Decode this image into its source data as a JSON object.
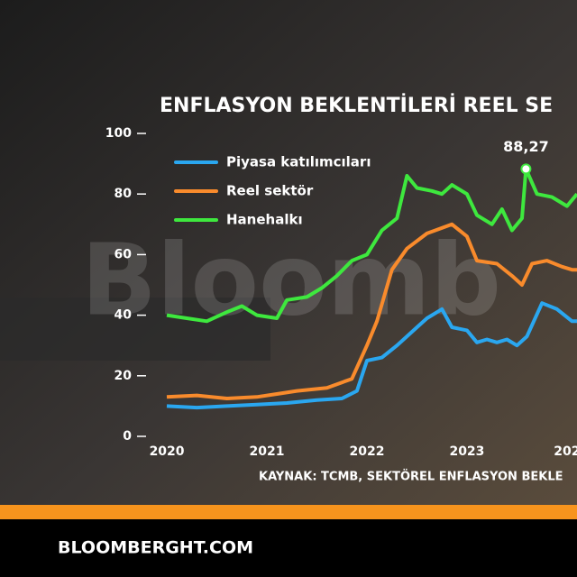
{
  "chart_data": {
    "type": "line",
    "title": "ENFLASYON BEKLENTİLERİ REEL SE",
    "watermark": "Bloomb",
    "source": "KAYNAK: TCMB, SEKTÖREL ENFLASYON BEKLE",
    "footer": "BLOOMBERGHT.COM",
    "xlim": [
      2019.95,
      2024.1
    ],
    "xticks": [
      2020,
      2021,
      2022,
      2023,
      {
        "value": 2024,
        "label": "202"
      }
    ],
    "ylim": [
      0,
      100
    ],
    "yticks": [
      0,
      20,
      40,
      60,
      80,
      100
    ],
    "series": [
      {
        "name": "Piyasa katılımcıları",
        "color": "#2aa7f0",
        "x": [
          2020,
          2020.3,
          2020.6,
          2020.9,
          2021.2,
          2021.5,
          2021.75,
          2021.9,
          2022.0,
          2022.15,
          2022.3,
          2022.5,
          2022.6,
          2022.75,
          2022.85,
          2023.0,
          2023.1,
          2023.2,
          2023.3,
          2023.4,
          2023.5,
          2023.6,
          2023.75,
          2023.9,
          2024.05,
          2024.1
        ],
        "values": [
          10,
          9.5,
          10,
          10.5,
          11,
          12,
          12.5,
          15,
          25,
          26,
          30,
          36,
          39,
          42,
          36,
          35,
          31,
          32,
          31,
          32,
          30,
          33,
          44,
          42,
          38,
          38
        ]
      },
      {
        "name": "Reel sektör",
        "color": "#f98b2c",
        "x": [
          2020,
          2020.3,
          2020.6,
          2020.9,
          2021.1,
          2021.3,
          2021.6,
          2021.85,
          2022.0,
          2022.1,
          2022.25,
          2022.4,
          2022.6,
          2022.85,
          2023.0,
          2023.1,
          2023.3,
          2023.45,
          2023.55,
          2023.65,
          2023.8,
          2023.95,
          2024.05,
          2024.1
        ],
        "values": [
          13,
          13.5,
          12.5,
          13,
          14,
          15,
          16,
          19,
          30,
          38,
          55,
          62,
          67,
          70,
          66,
          58,
          57,
          53,
          50,
          57,
          58,
          56,
          55,
          55
        ]
      },
      {
        "name": "Hanehalkı",
        "color": "#3ee83e",
        "x": [
          2020,
          2020.2,
          2020.4,
          2020.6,
          2020.75,
          2020.9,
          2021.1,
          2021.2,
          2021.4,
          2021.55,
          2021.7,
          2021.85,
          2022.0,
          2022.15,
          2022.3,
          2022.4,
          2022.5,
          2022.65,
          2022.75,
          2022.85,
          2023.0,
          2023.1,
          2023.25,
          2023.35,
          2023.45,
          2023.55,
          2023.59,
          2023.7,
          2023.85,
          2024.0,
          2024.1
        ],
        "values": [
          40,
          39,
          38,
          41,
          43,
          40,
          39,
          45,
          46,
          49,
          53,
          58,
          60,
          68,
          72,
          86,
          82,
          81,
          80,
          83,
          80,
          73,
          70,
          75,
          68,
          72,
          88.27,
          80,
          79,
          76,
          80
        ]
      }
    ],
    "annotation": {
      "label": "88,27",
      "x": 2023.59,
      "y": 88.27
    }
  }
}
